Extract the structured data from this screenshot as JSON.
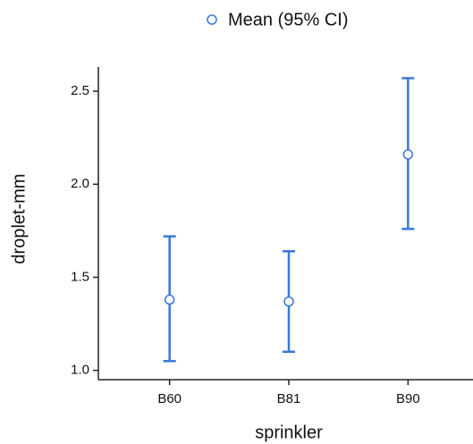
{
  "chart_data": {
    "type": "errorbar",
    "x_label": "sprinkler",
    "y_label": "droplet-mm",
    "categories": [
      "B60",
      "B81",
      "B90"
    ],
    "series": [
      {
        "name": "Mean (95% CI)",
        "color": "#3a78d8",
        "values": [
          1.38,
          1.37,
          2.16
        ],
        "lower": [
          1.05,
          1.1,
          1.76
        ],
        "upper": [
          1.72,
          1.64,
          2.57
        ]
      }
    ],
    "ylim": [
      0.95,
      2.63
    ],
    "yticks": [
      {
        "value": 1.0,
        "label": "1.0"
      },
      1.5,
      {
        "value": 2.0,
        "label": "2.0"
      },
      2.5
    ],
    "legend": "top"
  }
}
